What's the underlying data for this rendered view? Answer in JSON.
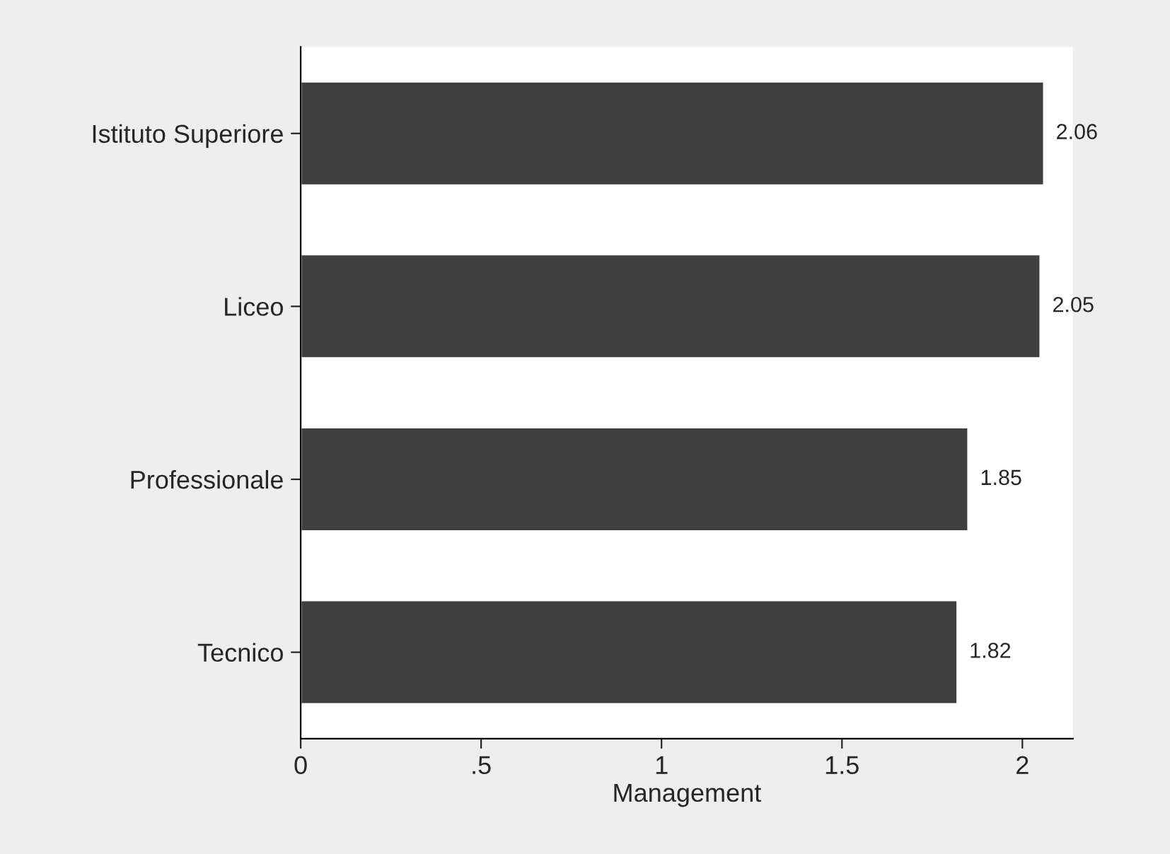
{
  "chart_data": {
    "type": "bar",
    "orientation": "horizontal",
    "xlabel": "Management",
    "categories": [
      "Istituto Superiore",
      "Liceo",
      "Professionale",
      "Tecnico"
    ],
    "values": [
      2.06,
      2.05,
      1.85,
      1.82
    ],
    "color": "#3f3f3f",
    "xlim": [
      0,
      2.14
    ],
    "xticks": [
      0,
      {
        "value": 0.5,
        "label": ".5"
      },
      1,
      1.5,
      2
    ],
    "data_labels": true,
    "grid": false,
    "legend": false
  }
}
